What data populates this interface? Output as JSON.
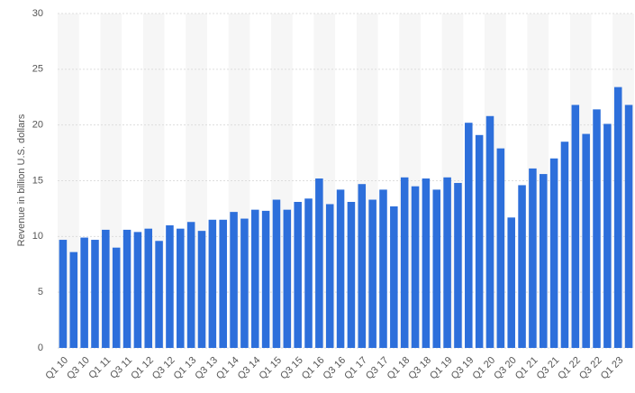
{
  "chart_data": {
    "type": "bar",
    "y_label": "Revenue in billion U.S. dollars",
    "color": "#2d6fdb",
    "grid": true,
    "ylim": [
      0,
      30
    ],
    "yticks": [
      0,
      5,
      10,
      15,
      20,
      25,
      30
    ],
    "categories": [
      "Q1 10",
      null,
      "Q3 10",
      null,
      "Q1 11",
      null,
      "Q3 11",
      null,
      "Q1 12",
      null,
      "Q3 12",
      null,
      "Q1 13",
      null,
      "Q3 13",
      null,
      "Q1 14",
      null,
      "Q3 14",
      null,
      "Q1 15",
      null,
      "Q3 15",
      null,
      "Q1 16",
      null,
      "Q3 16",
      null,
      "Q1 17",
      null,
      "Q3 17",
      null,
      "Q1 18",
      null,
      "Q3 18",
      null,
      "Q1 19",
      null,
      "Q3 19",
      null,
      "Q1 20",
      null,
      "Q3 20",
      null,
      "Q1 21",
      null,
      "Q3 21",
      null,
      "Q1 22",
      null,
      "Q3 22",
      null,
      "Q1 23",
      null
    ],
    "values": [
      9.7,
      8.6,
      9.9,
      9.7,
      10.6,
      9.0,
      10.6,
      10.4,
      10.7,
      9.6,
      11.0,
      10.7,
      11.3,
      10.5,
      11.5,
      11.5,
      12.2,
      11.6,
      12.4,
      12.3,
      13.3,
      12.4,
      13.1,
      13.4,
      15.2,
      12.9,
      14.2,
      13.1,
      14.7,
      13.3,
      14.2,
      12.7,
      15.3,
      14.5,
      15.2,
      14.2,
      15.3,
      14.8,
      20.2,
      19.1,
      20.8,
      17.9,
      11.7,
      14.6,
      16.1,
      15.6,
      17.0,
      18.5,
      21.8,
      19.2,
      21.4,
      20.1,
      23.4,
      21.8
    ]
  }
}
